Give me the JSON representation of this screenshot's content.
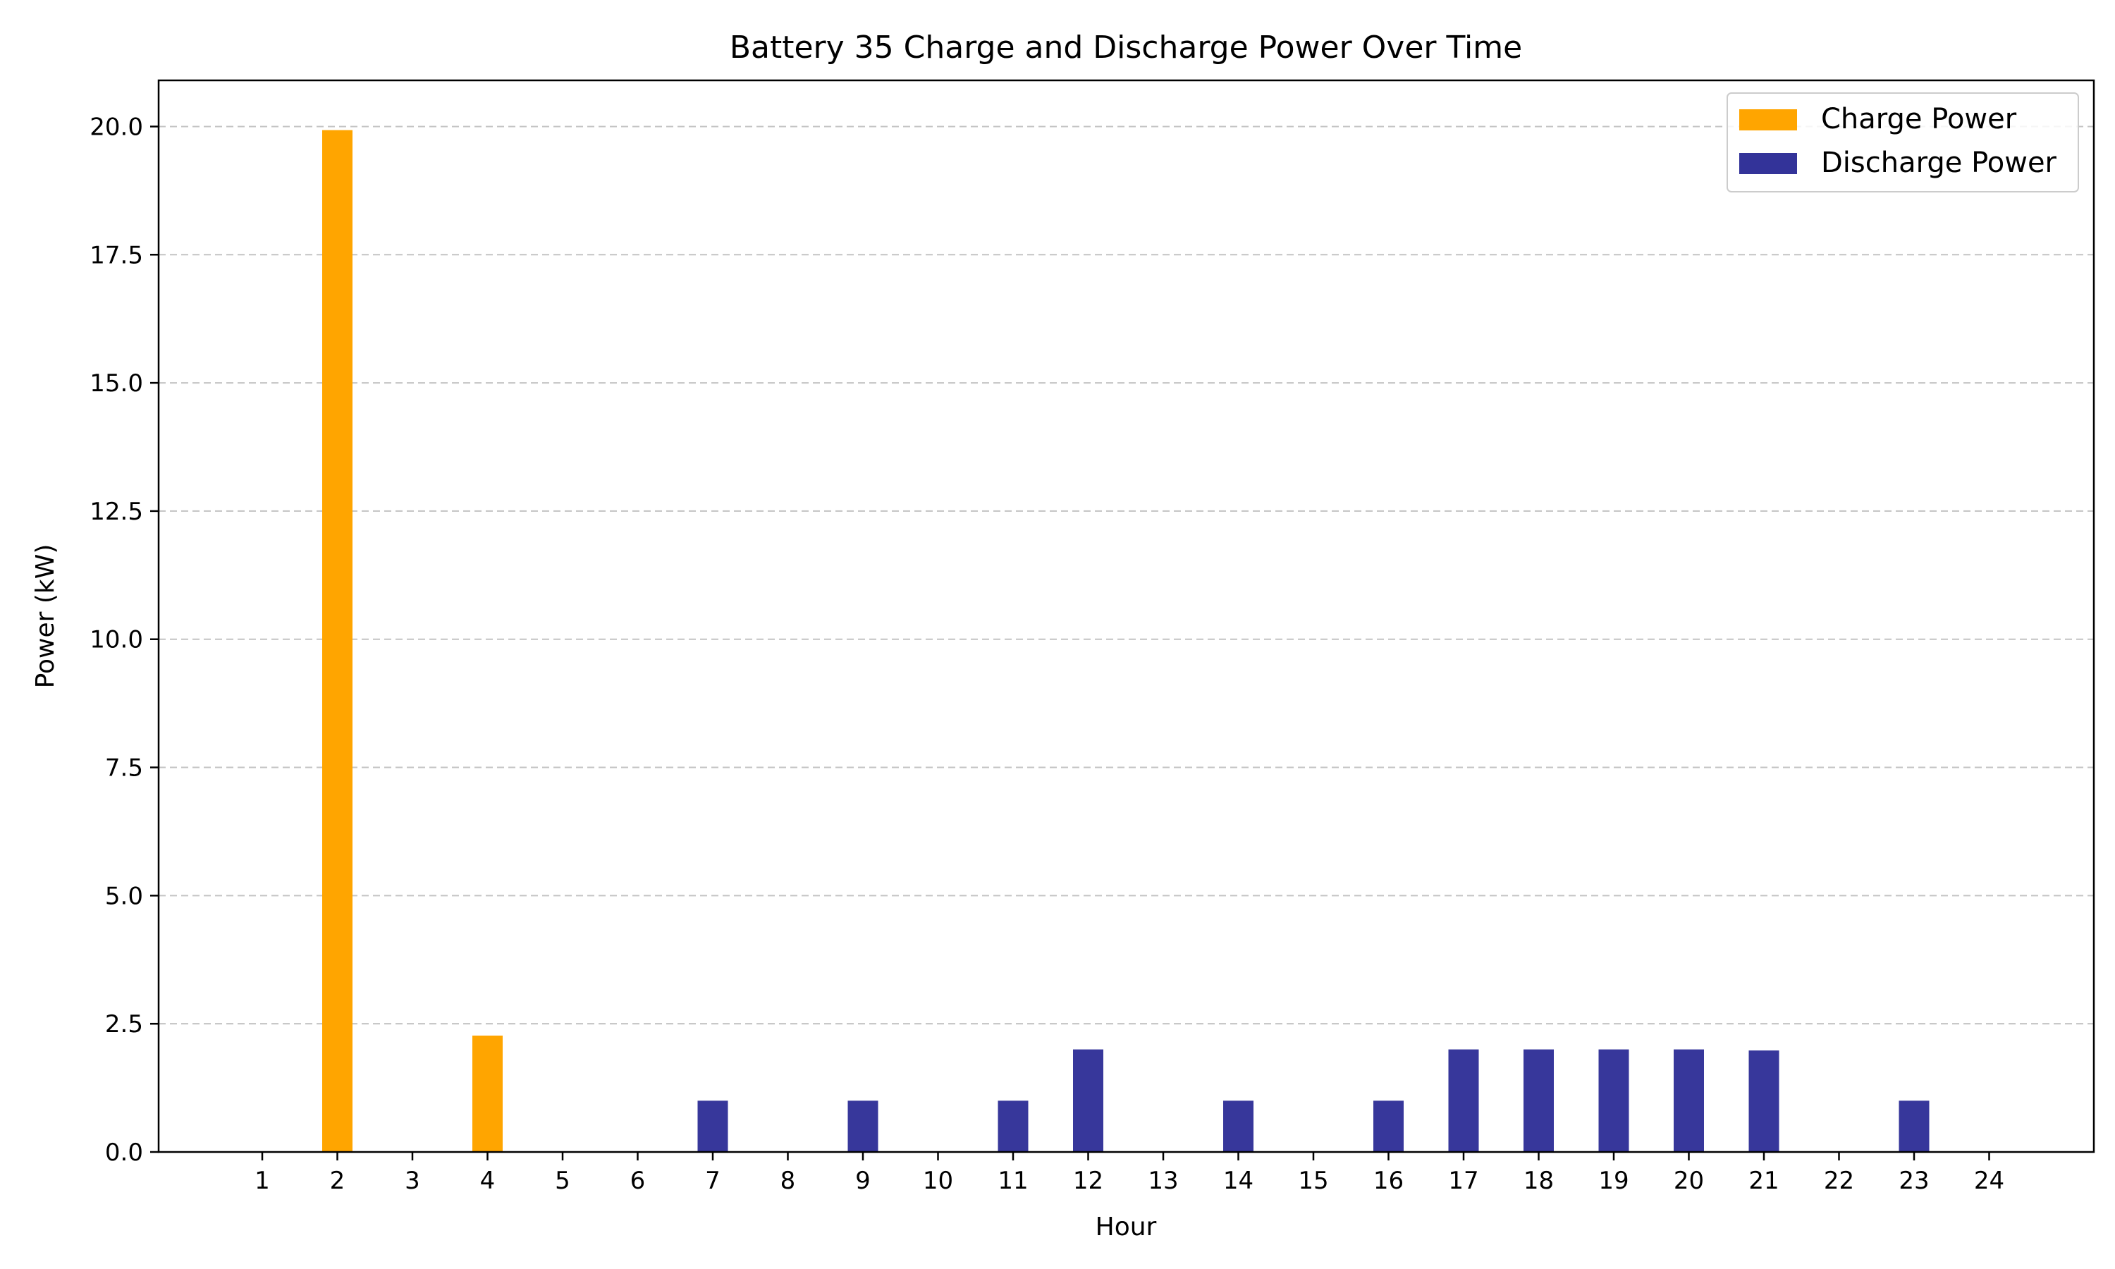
{
  "chart_data": {
    "type": "bar",
    "title": "Battery 35 Charge and Discharge Power Over Time",
    "xlabel": "Hour",
    "ylabel": "Power (kW)",
    "categories": [
      "1",
      "2",
      "3",
      "4",
      "5",
      "6",
      "7",
      "8",
      "9",
      "10",
      "11",
      "12",
      "13",
      "14",
      "15",
      "16",
      "17",
      "18",
      "19",
      "20",
      "21",
      "22",
      "23",
      "24"
    ],
    "series": [
      {
        "name": "Charge Power",
        "color": "#ffa500",
        "values": [
          0,
          19.93,
          0,
          2.27,
          0,
          0,
          0,
          0,
          0,
          0,
          0,
          0,
          0,
          0,
          0,
          0,
          0,
          0,
          0,
          0,
          0,
          0,
          0,
          0
        ]
      },
      {
        "name": "Discharge Power",
        "color": "#333399",
        "values": [
          0,
          0,
          0,
          0,
          0,
          0,
          1.0,
          0,
          1.0,
          0,
          1.0,
          2.0,
          0,
          1.0,
          0,
          1.0,
          2.0,
          2.0,
          2.0,
          2.0,
          1.98,
          0,
          1.0,
          0
        ]
      }
    ],
    "ylim": [
      0,
      20.9
    ],
    "yticks": [
      "0.0",
      "2.5",
      "5.0",
      "7.5",
      "10.0",
      "12.5",
      "15.0",
      "17.5",
      "20.0"
    ],
    "grid": "y-dashed",
    "legend": "top-right"
  }
}
